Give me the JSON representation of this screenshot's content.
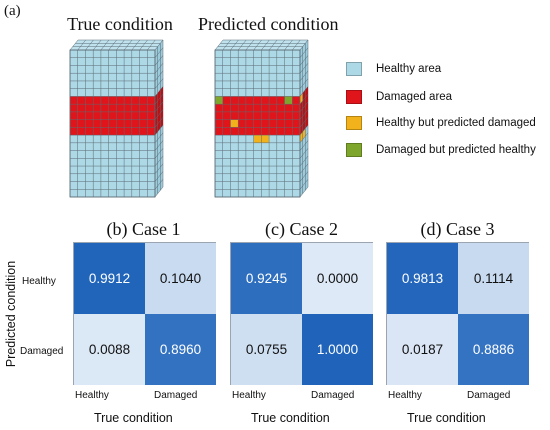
{
  "panel_a": {
    "label": "(a)",
    "true_title": "True condition",
    "predicted_title": "Predicted condition"
  },
  "legend": [
    {
      "label": "Healthy area",
      "color": "#add8e6"
    },
    {
      "label": "Damaged area",
      "color": "#e0151b"
    },
    {
      "label": "Healthy but predicted damaged",
      "color": "#f2b21b"
    },
    {
      "label": "Damaged but predicted healthy",
      "color": "#7fa62c"
    }
  ],
  "cases": [
    {
      "label": "(b) Case 1",
      "matrix": [
        [
          "0.9912",
          "0.1040"
        ],
        [
          "0.0088",
          "0.8960"
        ]
      ]
    },
    {
      "label": "(c) Case 2",
      "matrix": [
        [
          "0.9245",
          "0.0000"
        ],
        [
          "0.0755",
          "1.0000"
        ]
      ]
    },
    {
      "label": "(d) Case 3",
      "matrix": [
        [
          "0.9813",
          "0.1114"
        ],
        [
          "0.0187",
          "0.8886"
        ]
      ]
    }
  ],
  "axes": {
    "y_label": "Predicted condition",
    "x_label": "True condition",
    "row_labels": [
      "Healthy",
      "Damaged"
    ],
    "col_labels": [
      "Healthy",
      "Damaged"
    ]
  },
  "colors": {
    "heat_low": "#f7fbff",
    "heat_high": "#1f64ba",
    "cube_edge": "#5b6a73"
  }
}
